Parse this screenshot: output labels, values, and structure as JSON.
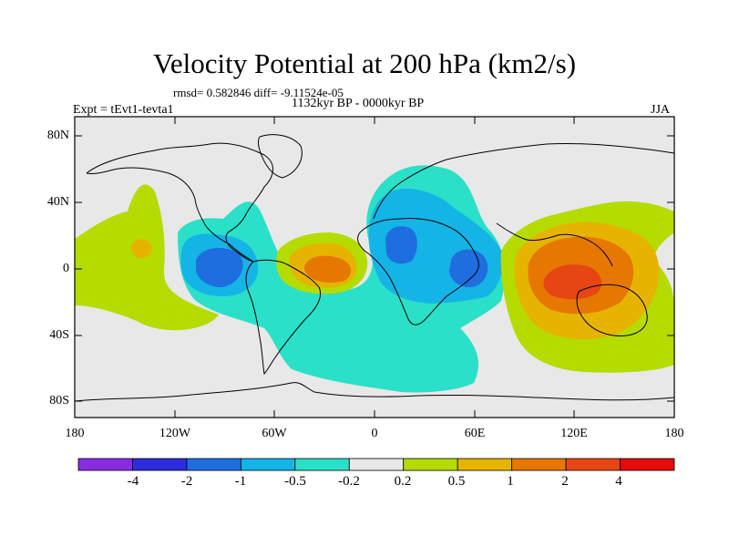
{
  "title": "Velocity Potential at 200 hPa (km2/s)",
  "stats": "rmsd= 0.582846 diff= -9.11524e-05",
  "period": "1132kyr BP - 0000kyr BP",
  "experiment": "Expt = tEvt1-tevta1",
  "season": "JJA",
  "map": {
    "lat_labels": [
      "80N",
      "40N",
      "0",
      "40S",
      "80S"
    ],
    "lon_labels": [
      "180",
      "120W",
      "60W",
      "0",
      "60E",
      "120E",
      "180"
    ]
  },
  "colorbar": {
    "labels": [
      "-4",
      "-2",
      "-1",
      "-0.5",
      "-0.2",
      "0.2",
      "0.5",
      "1",
      "2",
      "4"
    ],
    "colors": [
      "#8a2be2",
      "#2d2ddb",
      "#1e6ee0",
      "#14b4e6",
      "#2ae0c8",
      "#e8e8e8",
      "#b4dc00",
      "#e6b400",
      "#e67800",
      "#e64614",
      "#e60a0a"
    ]
  }
}
